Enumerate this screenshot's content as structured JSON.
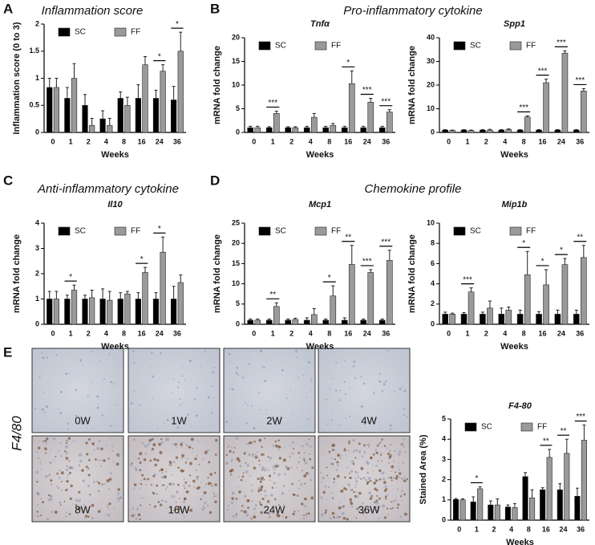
{
  "panels": [
    {
      "letter": "A",
      "title": "Inflammation score"
    },
    {
      "letter": "B",
      "title": "Pro-inflammatory cytokine"
    },
    {
      "letter": "C",
      "title": "Anti-inflammatory cytokine"
    },
    {
      "letter": "D",
      "title": "Chemokine profile"
    },
    {
      "letter": "E"
    }
  ],
  "micrographs": {
    "side_label": "F4/80",
    "labels": [
      "0W",
      "1W",
      "2W",
      "4W",
      "8W",
      "16W",
      "24W",
      "36W"
    ]
  },
  "chart_data": [
    {
      "type": "bar",
      "ylabel": "Inflammation score (0 to 3)",
      "xlabel": "Weeks",
      "categories": [
        "0",
        "1",
        "2",
        "4",
        "8",
        "16",
        "24",
        "36"
      ],
      "series": [
        {
          "name": "SC",
          "color": "#000000",
          "values": [
            0.83,
            0.63,
            0.5,
            0.25,
            0.63,
            0.63,
            0.63,
            0.6
          ],
          "errors": [
            0.17,
            0.2,
            0.2,
            0.15,
            0.12,
            0.25,
            0.15,
            0.25
          ]
        },
        {
          "name": "FF",
          "color": "#9a9a9a",
          "values": [
            0.83,
            1.0,
            0.13,
            0.13,
            0.5,
            1.25,
            1.13,
            1.5
          ],
          "errors": [
            0.17,
            0.27,
            0.13,
            0.13,
            0.15,
            0.15,
            0.12,
            0.35
          ]
        }
      ],
      "significance": [
        null,
        null,
        null,
        null,
        null,
        null,
        "*",
        "*"
      ],
      "ylim": [
        0,
        2
      ],
      "yticks": [
        0,
        0.5,
        1,
        1.5,
        2
      ]
    },
    {
      "type": "bar",
      "title": "Tnfα",
      "ylabel": "mRNA fold change",
      "xlabel": "Weeks",
      "categories": [
        "0",
        "1",
        "2",
        "4",
        "8",
        "16",
        "24",
        "36"
      ],
      "series": [
        {
          "name": "SC",
          "color": "#000000",
          "values": [
            1,
            1,
            1,
            1,
            1,
            1,
            1,
            1
          ],
          "errors": [
            0.3,
            0.2,
            0.2,
            0.3,
            0.3,
            0.3,
            0.3,
            0.3
          ]
        },
        {
          "name": "FF",
          "color": "#9a9a9a",
          "values": [
            1,
            4,
            1,
            3.2,
            1.5,
            10.3,
            6.4,
            4.3
          ],
          "errors": [
            0.3,
            0.5,
            0.2,
            0.8,
            0.4,
            2.7,
            0.8,
            0.5
          ]
        }
      ],
      "significance": [
        null,
        "***",
        null,
        null,
        null,
        "*",
        "***",
        "***"
      ],
      "ylim": [
        0,
        20
      ],
      "yticks": [
        0,
        5,
        10,
        15,
        20
      ]
    },
    {
      "type": "bar",
      "title": "Spp1",
      "ylabel": "mRNA fold change",
      "xlabel": "Weeks",
      "categories": [
        "0",
        "1",
        "2",
        "4",
        "8",
        "16",
        "24",
        "36"
      ],
      "series": [
        {
          "name": "SC",
          "color": "#000000",
          "values": [
            1,
            1,
            1,
            1,
            1,
            1,
            1,
            1
          ],
          "errors": [
            0.2,
            0.2,
            0.2,
            0.2,
            0.2,
            0.2,
            0.2,
            0.2
          ]
        },
        {
          "name": "FF",
          "color": "#9a9a9a",
          "values": [
            0.8,
            0.8,
            1,
            1.2,
            6.5,
            21,
            33.5,
            17.5
          ],
          "errors": [
            0.2,
            0.2,
            0.3,
            0.3,
            0.5,
            1.5,
            1,
            1
          ]
        }
      ],
      "significance": [
        null,
        null,
        null,
        null,
        "***",
        "***",
        "***",
        "***"
      ],
      "ylim": [
        0,
        40
      ],
      "yticks": [
        0,
        10,
        20,
        30,
        40
      ]
    },
    {
      "type": "bar",
      "title": "Il10",
      "ylabel": "mRNA fold change",
      "xlabel": "Weeks",
      "categories": [
        "0",
        "1",
        "2",
        "4",
        "8",
        "16",
        "24",
        "36"
      ],
      "series": [
        {
          "name": "SC",
          "color": "#000000",
          "values": [
            1,
            1,
            1,
            1,
            1,
            1,
            1,
            1
          ],
          "errors": [
            0.3,
            0.15,
            0.15,
            0.4,
            0.25,
            0.25,
            0.25,
            0.5
          ]
        },
        {
          "name": "FF",
          "color": "#9a9a9a",
          "values": [
            1,
            1.35,
            1.05,
            0.95,
            1.2,
            2.05,
            2.85,
            1.65
          ],
          "errors": [
            0.3,
            0.2,
            0.3,
            0.35,
            0.1,
            0.2,
            0.6,
            0.3
          ]
        }
      ],
      "significance": [
        null,
        "*",
        null,
        null,
        null,
        "*",
        "*",
        null
      ],
      "ylim": [
        0,
        4
      ],
      "yticks": [
        0,
        1,
        2,
        3,
        4
      ]
    },
    {
      "type": "bar",
      "title": "Mcp1",
      "ylabel": "mRNA fold change",
      "xlabel": "Weeks",
      "categories": [
        "0",
        "1",
        "2",
        "4",
        "8",
        "16",
        "24",
        "36"
      ],
      "series": [
        {
          "name": "SC",
          "color": "#000000",
          "values": [
            1,
            1,
            1,
            1,
            1,
            1,
            1,
            1
          ],
          "errors": [
            0.3,
            0.3,
            0.3,
            0.6,
            0.3,
            0.6,
            0.3,
            0.3
          ]
        },
        {
          "name": "FF",
          "color": "#9a9a9a",
          "values": [
            1,
            4.4,
            1.2,
            2.4,
            7,
            14.8,
            12.8,
            15.8
          ],
          "errors": [
            0.3,
            0.9,
            0.3,
            1.5,
            2.5,
            4.7,
            0.7,
            2.5
          ]
        }
      ],
      "significance": [
        null,
        "**",
        null,
        null,
        "*",
        "**",
        "***",
        "***"
      ],
      "ylim": [
        0,
        25
      ],
      "yticks": [
        0,
        5,
        10,
        15,
        20,
        25
      ]
    },
    {
      "type": "bar",
      "title": "Mip1b",
      "ylabel": "mRNA fold change",
      "xlabel": "Weeks",
      "categories": [
        "0",
        "1",
        "2",
        "4",
        "8",
        "16",
        "24",
        "36"
      ],
      "series": [
        {
          "name": "SC",
          "color": "#000000",
          "values": [
            1,
            1,
            1,
            1,
            1,
            1,
            1,
            1
          ],
          "errors": [
            0.2,
            0.15,
            0.2,
            0.6,
            0.4,
            0.25,
            0.4,
            0.4
          ]
        },
        {
          "name": "FF",
          "color": "#9a9a9a",
          "values": [
            1,
            3.2,
            1.6,
            1.4,
            4.9,
            3.9,
            5.9,
            6.6
          ],
          "errors": [
            0.1,
            0.4,
            0.7,
            0.3,
            2.3,
            1.5,
            0.6,
            1.2
          ]
        }
      ],
      "significance": [
        null,
        "***",
        null,
        null,
        "*",
        "*",
        "*",
        "**"
      ],
      "ylim": [
        0,
        10
      ],
      "yticks": [
        0,
        2,
        4,
        6,
        8,
        10
      ]
    },
    {
      "type": "bar",
      "title": "F4-80",
      "ylabel": "Stained Area (%)",
      "xlabel": "Weeks",
      "categories": [
        "0",
        "1",
        "2",
        "4",
        "8",
        "16",
        "24",
        "36"
      ],
      "series": [
        {
          "name": "SC",
          "color": "#000000",
          "values": [
            1.02,
            0.9,
            0.75,
            0.65,
            2.15,
            1.5,
            1.5,
            1.18
          ],
          "errors": [
            0.05,
            0.25,
            0.2,
            0.1,
            0.2,
            0.1,
            0.3,
            0.4
          ]
        },
        {
          "name": "FF",
          "color": "#9a9a9a",
          "values": [
            1.0,
            1.55,
            0.75,
            0.62,
            1.1,
            3.1,
            3.3,
            3.95
          ],
          "errors": [
            0.05,
            0.1,
            0.3,
            0.2,
            0.4,
            0.4,
            0.7,
            0.75
          ]
        }
      ],
      "significance": [
        null,
        "*",
        null,
        null,
        null,
        "**",
        "**",
        "***"
      ],
      "ylim": [
        0,
        5
      ],
      "yticks": [
        0,
        1,
        2,
        3,
        4,
        5
      ]
    }
  ]
}
